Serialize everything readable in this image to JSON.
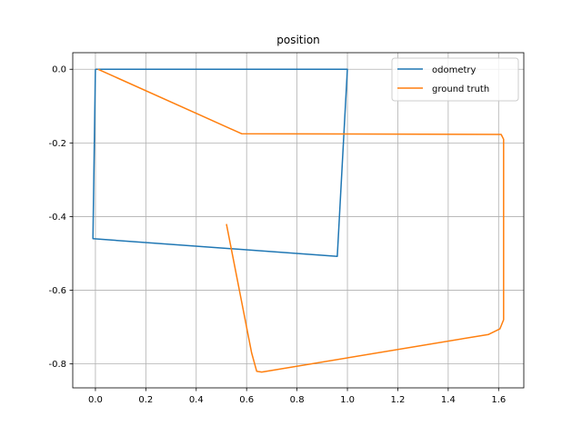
{
  "chart_data": {
    "type": "line",
    "title": "position",
    "xlabel": "",
    "ylabel": "",
    "xlim": [
      -0.09,
      1.7
    ],
    "ylim": [
      -0.865,
      0.045
    ],
    "xticks": [
      0.0,
      0.2,
      0.4,
      0.6,
      0.8,
      1.0,
      1.2,
      1.4,
      1.6
    ],
    "yticks": [
      0.0,
      -0.2,
      -0.4,
      -0.6,
      -0.8
    ],
    "grid": true,
    "legend_position": "top-right",
    "series": [
      {
        "name": "odometry",
        "color": "#1f77b4",
        "points": [
          [
            0.0,
            0.0
          ],
          [
            1.0,
            0.0
          ],
          [
            0.96,
            -0.508
          ],
          [
            -0.01,
            -0.46
          ],
          [
            0.0,
            0.0
          ]
        ]
      },
      {
        "name": "ground truth",
        "color": "#ff7f0e",
        "points": [
          [
            0.01,
            0.0
          ],
          [
            0.58,
            -0.175
          ],
          [
            1.61,
            -0.177
          ],
          [
            1.62,
            -0.19
          ],
          [
            1.62,
            -0.68
          ],
          [
            1.605,
            -0.705
          ],
          [
            1.56,
            -0.72
          ],
          [
            0.66,
            -0.822
          ],
          [
            0.64,
            -0.82
          ],
          [
            0.62,
            -0.77
          ],
          [
            0.52,
            -0.42
          ]
        ]
      }
    ]
  }
}
